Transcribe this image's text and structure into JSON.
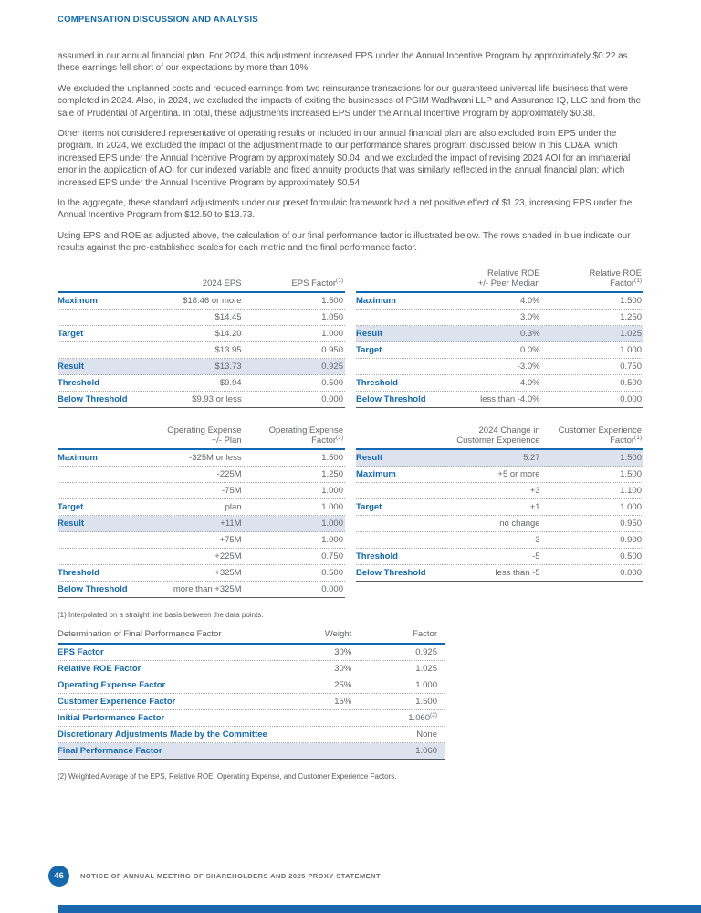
{
  "page": {
    "section_header": "COMPENSATION DISCUSSION AND ANALYSIS",
    "paragraphs": [
      "assumed in our annual financial plan. For 2024, this adjustment increased EPS under the Annual Incentive Program by approximately $0.22 as these earnings fell short of our expectations by more than 10%.",
      "We excluded the unplanned costs and reduced earnings from two reinsurance transactions for our guaranteed universal life business that were completed in 2024. Also, in 2024, we excluded the impacts of exiting the businesses of PGIM Wadhwani LLP and Assurance IQ, LLC and from the sale of Prudential of Argentina. In total, these adjustments increased EPS under the Annual Incentive Program by approximately $0.38.",
      "Other items not considered representative of operating results or included in our annual financial plan are also excluded from EPS under the program. In 2024, we excluded the impact of the adjustment made to our performance shares program discussed below in this CD&A, which increased EPS under the Annual Incentive Program by approximately $0.04, and we excluded the impact of revising 2024 AOI for an immaterial error in the application of AOI for our indexed variable and fixed annuity products that was similarly reflected in the annual financial plan; which increased EPS under the Annual Incentive Program by approximately $0.54.",
      "In the aggregate, these standard adjustments under our preset formulaic framework had a net positive effect of $1.23, increasing EPS under the Annual Incentive Program from $12.50 to $13.73.",
      "Using EPS and ROE as adjusted above, the calculation of our final performance factor is illustrated below. The rows shaded in blue indicate our results against the pre-established scales for each metric and the final performance factor."
    ],
    "footnote1": "(1) Interpolated on a straight line basis between the data points.",
    "footnote2": "(2) Weighted Average of the EPS, Relative ROE, Operating Expense, and Customer Experience Factors.",
    "footer": {
      "page_number": "46",
      "text": "NOTICE OF ANNUAL MEETING OF SHAREHOLDERS AND 2025 PROXY STATEMENT"
    }
  },
  "colors": {
    "brand_blue": "#1268b3",
    "row_shade": "#dde3ee",
    "body_text": "#58595b",
    "value_text": "#646669",
    "dotted_line": "#a8a8a8",
    "table_bottom": "#55575a",
    "footer_text": "#6d6e71",
    "footer_bar": "#1b67ad",
    "page_circle": "#1668ad"
  },
  "tables": {
    "eps": {
      "headers": [
        {
          "text": ""
        },
        {
          "text": "2024 EPS"
        },
        {
          "text": "EPS Factor",
          "sup": "(1)"
        }
      ],
      "rows": [
        {
          "cells": [
            "Maximum",
            "$18.46 or more",
            "1.500"
          ]
        },
        {
          "cells": [
            "",
            "$14.45",
            "1.050"
          ]
        },
        {
          "cells": [
            "Target",
            "$14.20",
            "1.000"
          ]
        },
        {
          "cells": [
            "",
            "$13.95",
            "0.950"
          ]
        },
        {
          "cells": [
            "Result",
            "$13.73",
            "0.925"
          ],
          "shaded": true
        },
        {
          "cells": [
            "Threshold",
            "$9.94",
            "0.500"
          ]
        },
        {
          "cells": [
            "Below Threshold",
            "$9.93 or less",
            "0.000"
          ]
        }
      ]
    },
    "roe": {
      "headers": [
        {
          "text": ""
        },
        {
          "text": "Relative ROE\n+/- Peer Median"
        },
        {
          "text": "Relative ROE\nFactor",
          "sup": "(1)"
        }
      ],
      "rows": [
        {
          "cells": [
            "Maximum",
            "4.0%",
            "1.500"
          ]
        },
        {
          "cells": [
            "",
            "3.0%",
            "1.250"
          ]
        },
        {
          "cells": [
            "Result",
            "0.3%",
            "1.025"
          ],
          "shaded": true
        },
        {
          "cells": [
            "Target",
            "0.0%",
            "1.000"
          ]
        },
        {
          "cells": [
            "",
            "-3.0%",
            "0.750"
          ]
        },
        {
          "cells": [
            "Threshold",
            "-4.0%",
            "0.500"
          ]
        },
        {
          "cells": [
            "Below Threshold",
            "less than -4.0%",
            "0.000"
          ]
        }
      ]
    },
    "opex": {
      "headers": [
        {
          "text": ""
        },
        {
          "text": "Operating Expense\n+/- Plan"
        },
        {
          "text": "Operating Expense\nFactor",
          "sup": "(1)"
        }
      ],
      "rows": [
        {
          "cells": [
            "Maximum",
            "-325M or less",
            "1.500"
          ]
        },
        {
          "cells": [
            "",
            "-225M",
            "1.250"
          ]
        },
        {
          "cells": [
            "",
            "-75M",
            "1.000"
          ]
        },
        {
          "cells": [
            "Target",
            "plan",
            "1.000"
          ]
        },
        {
          "cells": [
            "Result",
            "+11M",
            "1.000"
          ],
          "shaded": true
        },
        {
          "cells": [
            "",
            "+75M",
            "1.000"
          ]
        },
        {
          "cells": [
            "",
            "+225M",
            "0.750"
          ]
        },
        {
          "cells": [
            "Threshold",
            "+325M",
            "0.500"
          ]
        },
        {
          "cells": [
            "Below Threshold",
            "more than +325M",
            "0.000"
          ]
        }
      ]
    },
    "cx": {
      "headers": [
        {
          "text": ""
        },
        {
          "text": "2024 Change in\nCustomer Experience"
        },
        {
          "text": "Customer Experience\nFactor",
          "sup": "(1)"
        }
      ],
      "rows": [
        {
          "cells": [
            "Result",
            "5.27",
            "1.500"
          ],
          "shaded": true
        },
        {
          "cells": [
            "Maximum",
            "+5 or more",
            "1.500"
          ]
        },
        {
          "cells": [
            "",
            "+3",
            "1.100"
          ]
        },
        {
          "cells": [
            "Target",
            "+1",
            "1.000"
          ]
        },
        {
          "cells": [
            "",
            "no change",
            "0.950"
          ]
        },
        {
          "cells": [
            "",
            "-3",
            "0.900"
          ]
        },
        {
          "cells": [
            "Threshold",
            "-5",
            "0.500"
          ]
        },
        {
          "cells": [
            "Below Threshold",
            "less than -5",
            "0.000"
          ]
        }
      ]
    },
    "final": {
      "headers": [
        {
          "text": "Determination of Final Performance Factor"
        },
        {
          "text": "Weight"
        },
        {
          "text": "Factor"
        }
      ],
      "rows": [
        {
          "cells": [
            "EPS Factor",
            "30%",
            "0.925"
          ]
        },
        {
          "cells": [
            "Relative ROE Factor",
            "30%",
            "1.025"
          ]
        },
        {
          "cells": [
            "Operating Expense Factor",
            "25%",
            "1.000"
          ]
        },
        {
          "cells": [
            "Customer Experience Factor",
            "15%",
            "1.500"
          ]
        },
        {
          "cells": [
            "Initial Performance Factor",
            "",
            {
              "text": "1.060",
              "sup": "(2)"
            }
          ]
        },
        {
          "cells": [
            "Discretionary Adjustments Made by the Committee",
            "",
            "None"
          ]
        },
        {
          "cells": [
            "Final Performance Factor",
            "",
            "1.060"
          ],
          "shaded": true
        }
      ]
    }
  }
}
